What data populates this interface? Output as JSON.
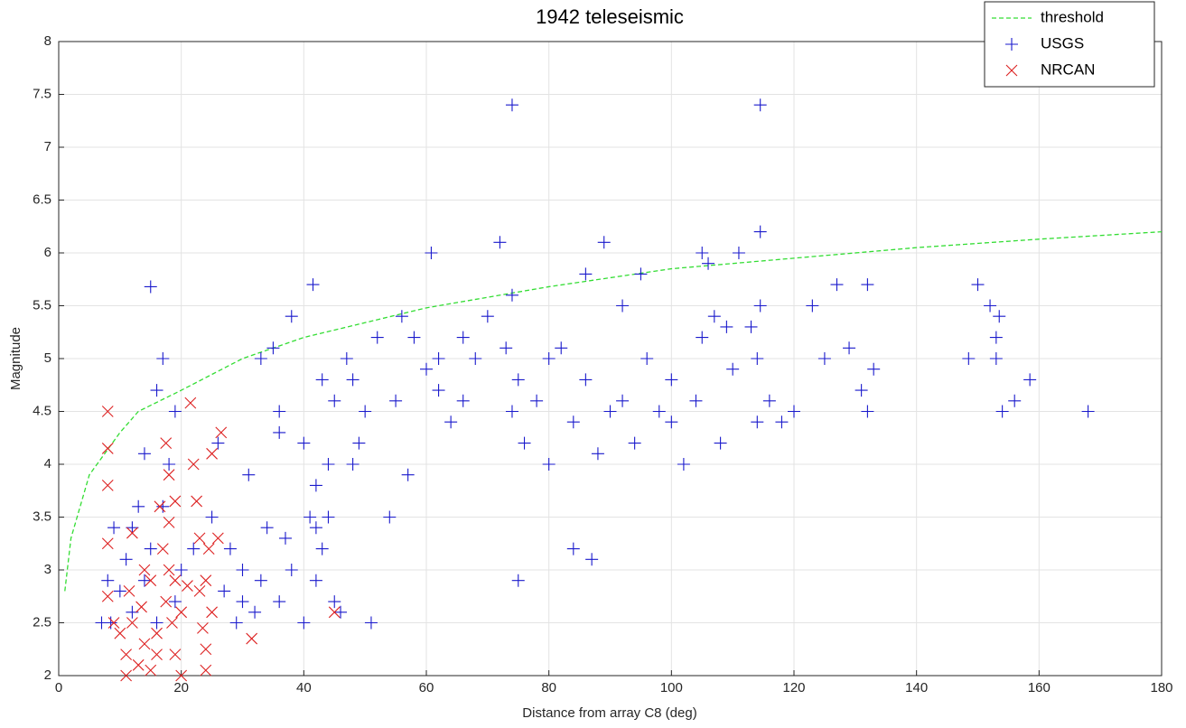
{
  "chart_data": {
    "type": "scatter",
    "title": "1942 teleseismic",
    "x_label": "Distance from array C8 (deg)",
    "y_label": "Magnitude",
    "xlim": [
      0,
      180
    ],
    "ylim": [
      2,
      8
    ],
    "xticks": [
      0,
      20,
      40,
      60,
      80,
      100,
      120,
      140,
      160,
      180
    ],
    "yticks": [
      2,
      2.5,
      3,
      3.5,
      4,
      4.5,
      5,
      5.5,
      6,
      6.5,
      7,
      7.5,
      8
    ],
    "grid": true,
    "legend": "upper right",
    "series": [
      {
        "name": "threshold",
        "color": "#33dd33",
        "marker": "none",
        "line_style": "dashed",
        "x": [
          1,
          2,
          5,
          10,
          13,
          20,
          30,
          40,
          60,
          80,
          100,
          120,
          140,
          160,
          180
        ],
        "values": [
          2.8,
          3.3,
          3.9,
          4.3,
          4.5,
          4.7,
          5.0,
          5.2,
          5.48,
          5.68,
          5.85,
          5.95,
          6.05,
          6.13,
          6.2
        ]
      },
      {
        "name": "USGS",
        "color": "#1a1acc",
        "marker": "plus",
        "line_style": "none",
        "x": [
          15,
          41.5,
          74,
          114.5,
          60.8,
          72,
          89,
          114.5,
          105,
          111,
          132,
          127,
          150,
          152,
          153.5,
          158.5,
          156,
          154,
          168,
          148.5,
          153,
          153,
          132,
          133,
          131,
          129,
          125,
          123,
          120,
          118,
          116,
          114.5,
          114,
          114,
          113,
          110,
          108,
          106,
          105,
          104,
          102,
          100,
          98,
          96,
          94,
          92,
          90,
          88,
          86,
          84,
          82,
          80,
          78,
          76,
          75,
          74,
          74,
          73,
          70,
          68,
          66,
          64,
          62,
          60,
          58,
          56,
          55,
          54,
          57,
          52,
          50,
          49,
          48,
          47,
          45,
          44,
          43,
          42,
          42,
          43,
          42,
          41,
          40,
          40,
          38,
          38,
          36,
          36,
          35,
          34,
          33,
          32,
          31,
          30,
          29,
          28,
          27,
          26,
          25,
          20,
          19,
          18,
          17,
          16,
          16,
          15,
          14,
          13,
          12,
          11,
          10,
          9,
          8,
          7,
          8.5,
          84,
          87,
          75,
          100,
          95,
          86,
          107,
          109,
          51,
          46,
          48,
          45,
          44,
          37,
          33,
          30,
          22,
          19,
          17,
          14,
          12,
          92,
          80,
          66,
          62,
          36
        ],
        "values": [
          5.68,
          5.7,
          7.4,
          7.4,
          6.0,
          6.1,
          6.1,
          6.2,
          6.0,
          6.0,
          5.7,
          5.7,
          5.7,
          5.5,
          5.4,
          4.8,
          4.6,
          4.5,
          4.5,
          5.0,
          5.2,
          5.0,
          4.5,
          4.9,
          4.7,
          5.1,
          5.0,
          5.5,
          4.5,
          4.4,
          4.6,
          5.5,
          5.0,
          4.4,
          5.3,
          4.9,
          4.2,
          5.9,
          5.2,
          4.6,
          4.0,
          4.8,
          4.5,
          5.0,
          4.2,
          4.6,
          4.5,
          4.1,
          4.8,
          4.4,
          5.1,
          4.0,
          4.6,
          4.2,
          4.8,
          5.6,
          4.5,
          5.1,
          5.4,
          5.0,
          4.6,
          4.4,
          5.0,
          4.9,
          5.2,
          5.4,
          4.6,
          3.5,
          3.9,
          5.2,
          4.5,
          4.2,
          4.8,
          5.0,
          4.6,
          4.0,
          4.8,
          3.8,
          3.4,
          3.2,
          2.9,
          3.5,
          4.2,
          2.5,
          5.4,
          3.0,
          4.5,
          2.7,
          5.1,
          3.4,
          5.0,
          2.6,
          3.9,
          3.0,
          2.5,
          3.2,
          2.8,
          4.2,
          3.5,
          3.0,
          2.7,
          4.0,
          3.6,
          4.7,
          2.5,
          3.2,
          2.9,
          3.6,
          2.6,
          3.1,
          2.8,
          3.4,
          2.9,
          2.5,
          2.5,
          3.2,
          3.1,
          2.9,
          4.4,
          5.8,
          5.8,
          5.4,
          5.3,
          2.5,
          2.6,
          4.0,
          2.7,
          3.5,
          3.3,
          2.9,
          2.7,
          3.2,
          4.5,
          5.0,
          4.1,
          3.4,
          5.5,
          5.0,
          5.2,
          4.7,
          4.3
        ]
      },
      {
        "name": "NRCAN",
        "color": "#dd2222",
        "marker": "cross",
        "line_style": "none",
        "x": [
          8,
          8,
          8,
          8,
          8,
          9,
          10,
          11,
          11,
          11.5,
          12,
          12,
          13,
          13.5,
          14,
          14,
          15,
          15,
          16,
          16.5,
          17,
          17.5,
          17.5,
          18,
          18,
          18,
          18.5,
          19,
          19,
          20,
          20,
          21,
          21.5,
          22,
          22.5,
          23,
          23,
          23.5,
          24,
          24,
          24,
          24.5,
          25,
          25,
          26,
          26.5,
          31.5,
          45,
          19,
          16
        ],
        "values": [
          4.5,
          4.15,
          3.8,
          3.25,
          2.75,
          2.5,
          2.4,
          2.2,
          2.0,
          2.8,
          3.35,
          2.5,
          2.1,
          2.65,
          3.0,
          2.3,
          2.9,
          2.05,
          2.4,
          3.6,
          3.2,
          4.2,
          2.7,
          3.9,
          3.45,
          3.0,
          2.5,
          2.2,
          3.65,
          2.6,
          2.0,
          2.85,
          4.58,
          4.0,
          3.65,
          3.3,
          2.8,
          2.45,
          2.25,
          2.05,
          2.9,
          3.2,
          4.1,
          2.6,
          3.3,
          4.3,
          2.35,
          2.6,
          2.9,
          2.2
        ]
      }
    ]
  }
}
